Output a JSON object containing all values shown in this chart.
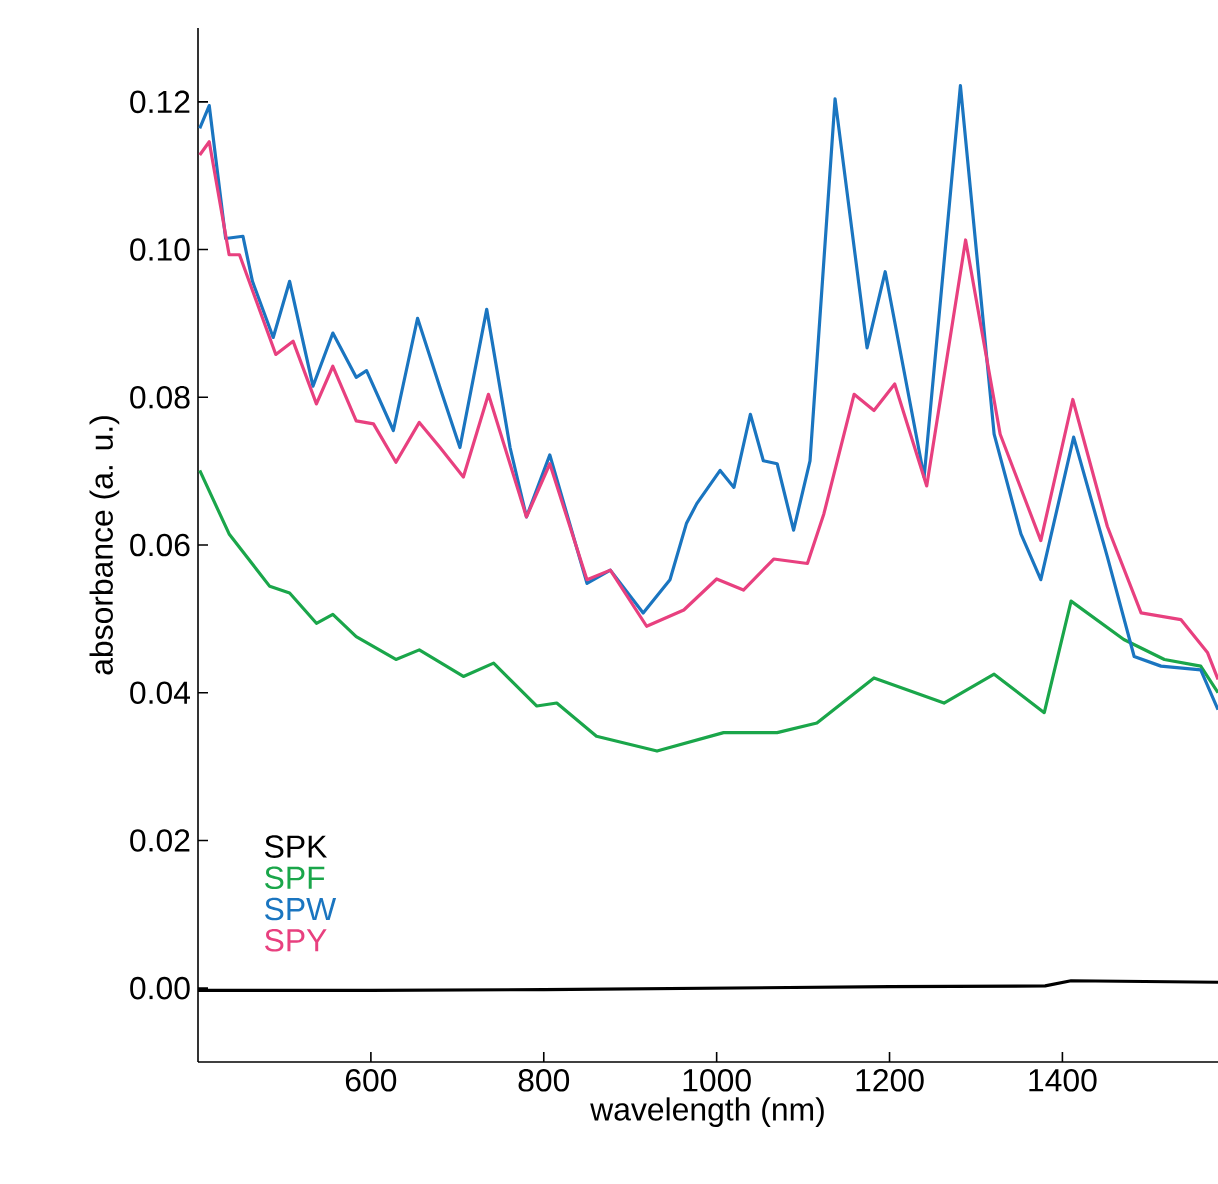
{
  "chart_data": {
    "type": "line",
    "xlabel": "wavelength (nm)",
    "ylabel": "absorbance (a. u.)",
    "xlim": [
      400,
      1580
    ],
    "xticks": [
      600,
      800,
      1000,
      1200,
      1400
    ],
    "ylim": [
      -0.01,
      0.13
    ],
    "yticks": [
      {
        "value": 0.0,
        "label": "0.00"
      },
      {
        "value": 0.02,
        "label": "0.02"
      },
      {
        "value": 0.04,
        "label": "0.04"
      },
      {
        "value": 0.06,
        "label": "0.06"
      },
      {
        "value": 0.08,
        "label": "0.08"
      },
      {
        "value": 0.1,
        "label": "0.10"
      },
      {
        "value": 0.12,
        "label": "0.12"
      }
    ],
    "grid": false,
    "legend": "bottom left",
    "marker": "none",
    "line_style": "solid",
    "series": [
      {
        "name": "SPK",
        "color": "#000000",
        "x": [
          400,
          600,
          800,
          1000,
          1200,
          1380,
          1410,
          1580
        ],
        "values": [
          -0.0003,
          -0.0003,
          -0.0002,
          0.0,
          0.0002,
          0.0003,
          0.001,
          0.0008
        ]
      },
      {
        "name": "SPF",
        "color": "#1aa64a",
        "x": [
          402,
          436,
          483,
          506,
          537,
          556,
          583,
          629,
          656,
          707,
          742,
          792,
          815,
          861,
          931,
          1008,
          1070,
          1116,
          1182,
          1263,
          1321,
          1379,
          1410,
          1471,
          1518,
          1560,
          1580
        ],
        "values": [
          0.0701,
          0.0615,
          0.0544,
          0.0535,
          0.0494,
          0.0506,
          0.0476,
          0.0445,
          0.0458,
          0.0422,
          0.044,
          0.0382,
          0.0386,
          0.0341,
          0.0321,
          0.0346,
          0.0346,
          0.0359,
          0.042,
          0.0386,
          0.0425,
          0.0373,
          0.0524,
          0.0472,
          0.0445,
          0.0436,
          0.04
        ]
      },
      {
        "name": "SPW",
        "color": "#1a75c0",
        "x": [
          402,
          413,
          432,
          452,
          463,
          487,
          506,
          533,
          556,
          583,
          595,
          626,
          654,
          680,
          703,
          734,
          761,
          780,
          807,
          850,
          877,
          915,
          946,
          965,
          977,
          1004,
          1020,
          1039,
          1054,
          1070,
          1089,
          1108,
          1137,
          1174,
          1195,
          1240,
          1282,
          1321,
          1352,
          1375,
          1413,
          1452,
          1483,
          1514,
          1560,
          1580
        ],
        "values": [
          0.1164,
          0.1195,
          0.1015,
          0.1018,
          0.0957,
          0.0881,
          0.0957,
          0.0815,
          0.0887,
          0.0827,
          0.0836,
          0.0755,
          0.0907,
          0.0813,
          0.0732,
          0.0919,
          0.0732,
          0.0638,
          0.0722,
          0.0548,
          0.0566,
          0.0508,
          0.0553,
          0.0629,
          0.0656,
          0.0701,
          0.0678,
          0.0777,
          0.0714,
          0.071,
          0.062,
          0.0714,
          0.1204,
          0.0867,
          0.097,
          0.0692,
          0.1222,
          0.075,
          0.0615,
          0.0553,
          0.0746,
          0.0584,
          0.0449,
          0.0436,
          0.0431,
          0.0377
        ]
      },
      {
        "name": "SPY",
        "color": "#e8407f",
        "x": [
          402,
          413,
          436,
          448,
          490,
          510,
          537,
          556,
          583,
          603,
          629,
          656,
          680,
          707,
          736,
          780,
          807,
          850,
          877,
          919,
          962,
          1000,
          1031,
          1066,
          1105,
          1124,
          1159,
          1182,
          1206,
          1243,
          1288,
          1328,
          1375,
          1412,
          1452,
          1491,
          1537,
          1568,
          1580
        ],
        "values": [
          0.1128,
          0.1146,
          0.0993,
          0.0993,
          0.0858,
          0.0876,
          0.0791,
          0.0842,
          0.0768,
          0.0764,
          0.0712,
          0.0766,
          0.0732,
          0.0692,
          0.0804,
          0.0638,
          0.071,
          0.0553,
          0.0566,
          0.049,
          0.0512,
          0.0554,
          0.0539,
          0.0581,
          0.0575,
          0.0642,
          0.0804,
          0.0782,
          0.0818,
          0.068,
          0.1013,
          0.075,
          0.0606,
          0.0797,
          0.0625,
          0.0508,
          0.0499,
          0.0454,
          0.0418
        ]
      }
    ]
  }
}
